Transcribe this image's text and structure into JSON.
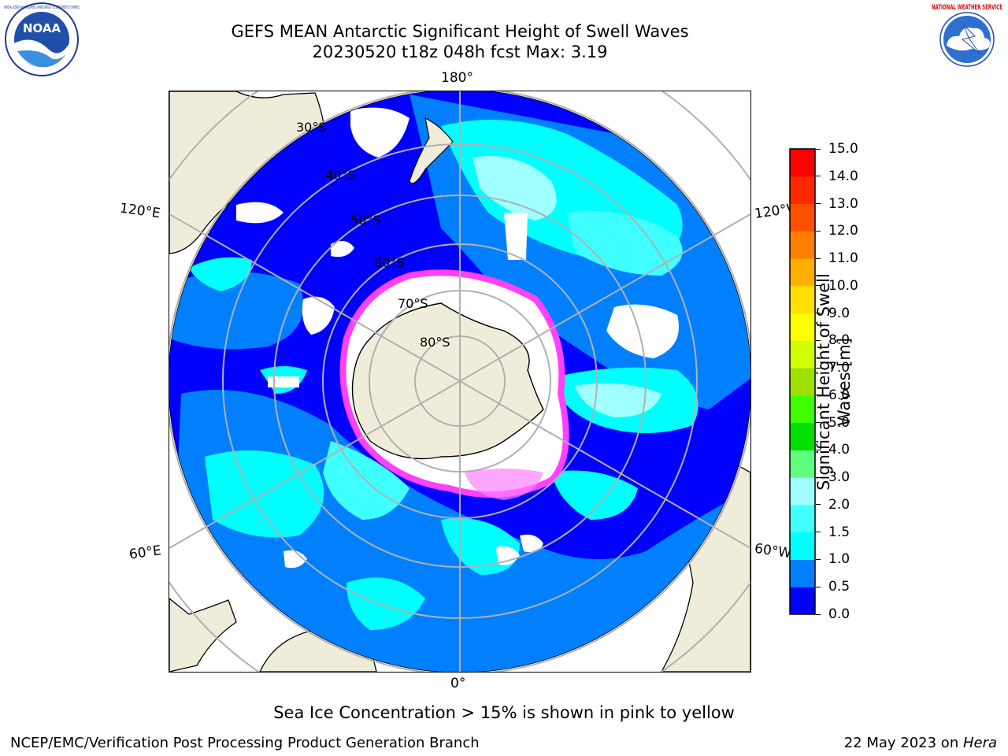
{
  "header": {
    "title_line1": "GEFS MEAN Antarctic Significant Height of Swell Waves",
    "title_line2": "20230520 t18z 048h fcst   Max: 3.19",
    "left_logo_text": "NOAA",
    "left_logo_ring": "NATIONAL OCEANIC AND ATMOSPHERIC ADMINISTRATION · U.S. DEPARTMENT OF COMMERCE",
    "right_logo_ring": "NATIONAL WEATHER SERVICE"
  },
  "map": {
    "projection": "south-polar-stereographic",
    "lon_labels": {
      "top": "180°",
      "bottom": "0°",
      "upper_left": "120°E",
      "upper_right": "120°W",
      "lower_left": "60°E",
      "lower_right": "60°W"
    },
    "lat_labels": [
      "30°S",
      "40°S",
      "50°S",
      "60°S",
      "70°S",
      "80°S"
    ],
    "colors": {
      "land": "#efedda",
      "ice_free_low": "#0000ff",
      "swell_0_5": "#0080ff",
      "swell_1_0": "#00ffff",
      "swell_1_5": "#40ffff",
      "swell_2_0": "#a0ffff",
      "sea_ice_edge": "#ff40ff",
      "graticule": "#b0b0b0"
    }
  },
  "colorbar": {
    "label": "Significant Height of Swell Waves [m]",
    "label_line1": "Significant Height of Swell",
    "label_line2": "Waves [m]",
    "ticks": [
      "0.0",
      "0.5",
      "1.0",
      "1.5",
      "2.0",
      "3.0",
      "4.0",
      "5.0",
      "6.0",
      "7.0",
      "8.0",
      "9.0",
      "10.0",
      "11.0",
      "12.0",
      "13.0",
      "14.0",
      "15.0"
    ],
    "colors": [
      "#0000ff",
      "#0080ff",
      "#00ffff",
      "#40ffff",
      "#a0ffff",
      "#60ff80",
      "#00e000",
      "#40ff00",
      "#a0e000",
      "#d0ff00",
      "#ffff00",
      "#ffe000",
      "#ffb000",
      "#ff8000",
      "#ff5000",
      "#ff2800",
      "#ff0000"
    ]
  },
  "footer": {
    "note": "Sea Ice Concentration > 15% is shown in pink to yellow",
    "credit": "NCEP/EMC/Verification Post Processing Product Generation Branch",
    "date_prefix": "22 May 2023 on ",
    "machine": "Hera"
  }
}
